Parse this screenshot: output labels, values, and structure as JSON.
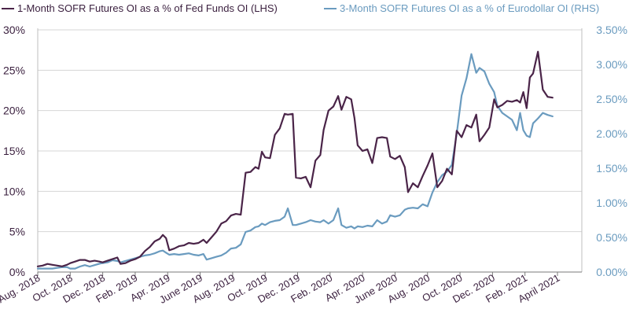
{
  "chart_data": {
    "type": "line",
    "legend": [
      {
        "label": "1-Month SOFR Futures OI as a % of Fed Funds OI (LHS)",
        "color": "#4a2448",
        "axis": "left"
      },
      {
        "label": "3-Month SOFR Futures OI as a % of Eurodollar OI (RHS)",
        "color": "#6a9bbf",
        "axis": "right"
      }
    ],
    "legend_position": "top",
    "grid": true,
    "left_axis": {
      "ylim": [
        0,
        30
      ],
      "ticks": [
        0,
        5,
        10,
        15,
        20,
        25,
        30
      ],
      "tick_labels": [
        "0%",
        "5%",
        "10%",
        "15%",
        "20%",
        "25%",
        "30%"
      ]
    },
    "right_axis": {
      "ylim": [
        0,
        3.5
      ],
      "ticks": [
        0,
        0.5,
        1.0,
        1.5,
        2.0,
        2.5,
        3.0,
        3.5
      ],
      "tick_labels": [
        "0.00%",
        "0.50%",
        "1.00%",
        "1.50%",
        "2.00%",
        "2.50%",
        "3.00%",
        "3.50%"
      ]
    },
    "x_axis": {
      "range": [
        0,
        33.5
      ],
      "ticks": [
        0,
        2,
        4,
        6,
        8,
        10,
        12,
        14,
        16,
        18,
        20,
        22,
        24,
        26,
        28,
        30,
        32
      ],
      "tick_labels": [
        "Aug. 2018",
        "Oct. 2018",
        "Dec. 2018",
        "Feb. 2019",
        "Apr. 2019",
        "June 2019",
        "Aug. 2019",
        "Oct. 2019",
        "Dec. 2019",
        "Feb. 2020",
        "Apr. 2020",
        "June 2020",
        "Aug. 2020",
        "Oct. 2020",
        "Dec. 2020",
        "Feb. 2021",
        "April 2021"
      ],
      "x_unit": "months since Aug. 2018"
    },
    "series": [
      {
        "name": "1-Month SOFR Futures OI as a % of Fed Funds OI (LHS)",
        "axis": "left",
        "points": [
          [
            0,
            0.7
          ],
          [
            0.3,
            0.8
          ],
          [
            0.6,
            1.0
          ],
          [
            0.9,
            0.9
          ],
          [
            1.2,
            0.8
          ],
          [
            1.5,
            0.7
          ],
          [
            1.8,
            0.9
          ],
          [
            2.0,
            1.1
          ],
          [
            2.3,
            1.3
          ],
          [
            2.6,
            1.5
          ],
          [
            2.9,
            1.5
          ],
          [
            3.2,
            1.3
          ],
          [
            3.5,
            1.4
          ],
          [
            3.8,
            1.3
          ],
          [
            4.0,
            1.2
          ],
          [
            4.3,
            1.4
          ],
          [
            4.6,
            1.6
          ],
          [
            4.9,
            1.8
          ],
          [
            5.1,
            1.0
          ],
          [
            5.4,
            1.1
          ],
          [
            5.7,
            1.4
          ],
          [
            6.0,
            1.6
          ],
          [
            6.3,
            1.9
          ],
          [
            6.6,
            2.6
          ],
          [
            6.9,
            3.1
          ],
          [
            7.2,
            3.8
          ],
          [
            7.5,
            4.1
          ],
          [
            7.7,
            4.6
          ],
          [
            7.9,
            4.2
          ],
          [
            8.1,
            2.7
          ],
          [
            8.4,
            2.9
          ],
          [
            8.7,
            3.2
          ],
          [
            9.0,
            3.3
          ],
          [
            9.3,
            3.6
          ],
          [
            9.6,
            3.5
          ],
          [
            9.9,
            3.6
          ],
          [
            10.2,
            4.0
          ],
          [
            10.4,
            3.6
          ],
          [
            10.7,
            4.3
          ],
          [
            11.0,
            5.0
          ],
          [
            11.3,
            6.0
          ],
          [
            11.6,
            6.3
          ],
          [
            11.9,
            7.0
          ],
          [
            12.2,
            7.2
          ],
          [
            12.5,
            7.1
          ],
          [
            12.8,
            12.3
          ],
          [
            13.1,
            12.4
          ],
          [
            13.4,
            13.0
          ],
          [
            13.6,
            12.8
          ],
          [
            13.8,
            14.9
          ],
          [
            14.0,
            14.2
          ],
          [
            14.3,
            14.1
          ],
          [
            14.6,
            17.0
          ],
          [
            14.9,
            17.8
          ],
          [
            15.2,
            19.6
          ],
          [
            15.4,
            19.5
          ],
          [
            15.7,
            19.6
          ],
          [
            15.9,
            11.7
          ],
          [
            16.2,
            11.6
          ],
          [
            16.5,
            11.8
          ],
          [
            16.8,
            10.5
          ],
          [
            17.1,
            13.8
          ],
          [
            17.4,
            14.5
          ],
          [
            17.6,
            17.6
          ],
          [
            17.9,
            20.0
          ],
          [
            18.2,
            20.5
          ],
          [
            18.5,
            21.8
          ],
          [
            18.7,
            20.1
          ],
          [
            19.0,
            21.7
          ],
          [
            19.3,
            21.4
          ],
          [
            19.5,
            19.1
          ],
          [
            19.7,
            15.7
          ],
          [
            20.0,
            15.0
          ],
          [
            20.3,
            15.2
          ],
          [
            20.6,
            13.5
          ],
          [
            20.9,
            16.6
          ],
          [
            21.2,
            16.7
          ],
          [
            21.5,
            16.6
          ],
          [
            21.7,
            14.3
          ],
          [
            22.0,
            14.0
          ],
          [
            22.3,
            14.4
          ],
          [
            22.6,
            13.0
          ],
          [
            22.8,
            9.9
          ],
          [
            23.1,
            11.0
          ],
          [
            23.4,
            10.5
          ],
          [
            23.7,
            11.9
          ],
          [
            24.0,
            13.2
          ],
          [
            24.3,
            14.7
          ],
          [
            24.6,
            10.5
          ],
          [
            24.9,
            11.3
          ],
          [
            25.2,
            12.8
          ],
          [
            25.5,
            12.1
          ],
          [
            25.8,
            17.5
          ],
          [
            26.1,
            16.7
          ],
          [
            26.4,
            18.2
          ],
          [
            26.7,
            17.9
          ],
          [
            27.0,
            19.5
          ],
          [
            27.2,
            16.2
          ],
          [
            27.5,
            17.0
          ],
          [
            27.8,
            17.9
          ],
          [
            28.1,
            21.4
          ],
          [
            28.3,
            20.4
          ],
          [
            28.6,
            20.7
          ],
          [
            28.9,
            21.2
          ],
          [
            29.2,
            21.1
          ],
          [
            29.5,
            21.3
          ],
          [
            29.7,
            21.0
          ],
          [
            29.9,
            22.3
          ],
          [
            30.1,
            20.3
          ],
          [
            30.3,
            24.1
          ],
          [
            30.5,
            24.6
          ],
          [
            30.8,
            27.3
          ],
          [
            31.1,
            22.6
          ],
          [
            31.4,
            21.7
          ],
          [
            31.7,
            21.6
          ]
        ]
      },
      {
        "name": "3-Month SOFR Futures OI as a % of Eurodollar OI (RHS)",
        "axis": "right",
        "points": [
          [
            0,
            0.05
          ],
          [
            0.3,
            0.05
          ],
          [
            0.6,
            0.05
          ],
          [
            0.9,
            0.05
          ],
          [
            1.2,
            0.06
          ],
          [
            1.5,
            0.07
          ],
          [
            1.8,
            0.07
          ],
          [
            2.0,
            0.05
          ],
          [
            2.3,
            0.05
          ],
          [
            2.6,
            0.08
          ],
          [
            2.9,
            0.1
          ],
          [
            3.2,
            0.08
          ],
          [
            3.5,
            0.1
          ],
          [
            3.8,
            0.12
          ],
          [
            4.0,
            0.13
          ],
          [
            4.3,
            0.14
          ],
          [
            4.6,
            0.17
          ],
          [
            4.9,
            0.16
          ],
          [
            5.1,
            0.14
          ],
          [
            5.4,
            0.16
          ],
          [
            5.7,
            0.18
          ],
          [
            6.0,
            0.2
          ],
          [
            6.3,
            0.22
          ],
          [
            6.6,
            0.24
          ],
          [
            6.9,
            0.25
          ],
          [
            7.2,
            0.27
          ],
          [
            7.5,
            0.3
          ],
          [
            7.7,
            0.31
          ],
          [
            7.9,
            0.28
          ],
          [
            8.1,
            0.25
          ],
          [
            8.4,
            0.26
          ],
          [
            8.7,
            0.25
          ],
          [
            9.0,
            0.26
          ],
          [
            9.3,
            0.27
          ],
          [
            9.6,
            0.25
          ],
          [
            9.9,
            0.24
          ],
          [
            10.2,
            0.26
          ],
          [
            10.4,
            0.18
          ],
          [
            10.7,
            0.2
          ],
          [
            11.0,
            0.22
          ],
          [
            11.3,
            0.24
          ],
          [
            11.6,
            0.28
          ],
          [
            11.9,
            0.34
          ],
          [
            12.2,
            0.35
          ],
          [
            12.5,
            0.4
          ],
          [
            12.8,
            0.58
          ],
          [
            13.1,
            0.6
          ],
          [
            13.4,
            0.65
          ],
          [
            13.6,
            0.66
          ],
          [
            13.8,
            0.7
          ],
          [
            14.0,
            0.68
          ],
          [
            14.3,
            0.72
          ],
          [
            14.6,
            0.74
          ],
          [
            14.9,
            0.75
          ],
          [
            15.2,
            0.8
          ],
          [
            15.4,
            0.92
          ],
          [
            15.7,
            0.68
          ],
          [
            15.9,
            0.68
          ],
          [
            16.2,
            0.7
          ],
          [
            16.5,
            0.72
          ],
          [
            16.8,
            0.75
          ],
          [
            17.1,
            0.73
          ],
          [
            17.4,
            0.72
          ],
          [
            17.6,
            0.75
          ],
          [
            17.9,
            0.7
          ],
          [
            18.2,
            0.75
          ],
          [
            18.5,
            0.92
          ],
          [
            18.7,
            0.68
          ],
          [
            19.0,
            0.64
          ],
          [
            19.3,
            0.66
          ],
          [
            19.5,
            0.63
          ],
          [
            19.7,
            0.66
          ],
          [
            20.0,
            0.65
          ],
          [
            20.3,
            0.67
          ],
          [
            20.6,
            0.66
          ],
          [
            20.9,
            0.75
          ],
          [
            21.2,
            0.7
          ],
          [
            21.5,
            0.73
          ],
          [
            21.7,
            0.82
          ],
          [
            22.0,
            0.8
          ],
          [
            22.3,
            0.82
          ],
          [
            22.6,
            0.9
          ],
          [
            22.8,
            0.92
          ],
          [
            23.1,
            0.93
          ],
          [
            23.4,
            0.92
          ],
          [
            23.7,
            0.98
          ],
          [
            24.0,
            0.95
          ],
          [
            24.3,
            1.15
          ],
          [
            24.6,
            1.3
          ],
          [
            24.9,
            1.4
          ],
          [
            25.2,
            1.45
          ],
          [
            25.5,
            1.55
          ],
          [
            25.8,
            2.0
          ],
          [
            26.1,
            2.55
          ],
          [
            26.4,
            2.8
          ],
          [
            26.7,
            3.15
          ],
          [
            27.0,
            2.88
          ],
          [
            27.2,
            2.95
          ],
          [
            27.5,
            2.9
          ],
          [
            27.8,
            2.72
          ],
          [
            28.1,
            2.6
          ],
          [
            28.3,
            2.4
          ],
          [
            28.6,
            2.3
          ],
          [
            28.9,
            2.25
          ],
          [
            29.2,
            2.2
          ],
          [
            29.5,
            2.05
          ],
          [
            29.7,
            2.3
          ],
          [
            29.9,
            2.05
          ],
          [
            30.1,
            1.97
          ],
          [
            30.3,
            1.95
          ],
          [
            30.5,
            2.15
          ],
          [
            30.8,
            2.22
          ],
          [
            31.1,
            2.3
          ],
          [
            31.4,
            2.27
          ],
          [
            31.7,
            2.25
          ]
        ]
      }
    ]
  }
}
